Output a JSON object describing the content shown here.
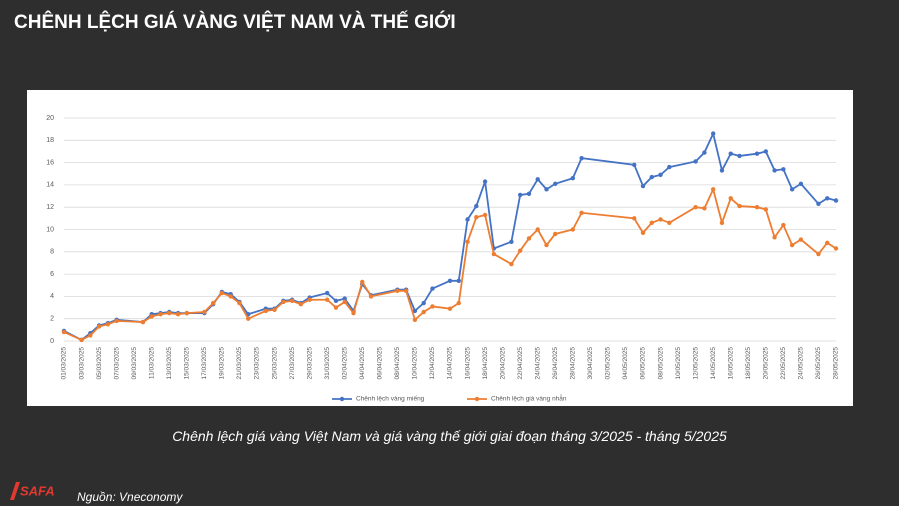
{
  "header": {
    "title": "CHÊNH LỆCH GIÁ VÀNG VIỆT NAM VÀ THẾ GIỚI"
  },
  "caption": "Chênh lệch giá vàng Việt Nam và giá vàng thế giới giai đoạn tháng 3/2025 - tháng 5/2025",
  "source": "Nguồn: Vneconomy",
  "logo": "SAFA",
  "chart_data": {
    "type": "line",
    "x": [
      "01/03/2025",
      "03/03/2025",
      "04/03/2025",
      "05/03/2025",
      "06/03/2025",
      "07/03/2025",
      "10/03/2025",
      "11/03/2025",
      "12/03/2025",
      "13/03/2025",
      "14/03/2025",
      "15/03/2025",
      "17/03/2025",
      "18/03/2025",
      "19/03/2025",
      "20/03/2025",
      "21/03/2025",
      "22/03/2025",
      "24/03/2025",
      "25/03/2025",
      "26/03/2025",
      "27/03/2025",
      "28/03/2025",
      "29/03/2025",
      "31/03/2025",
      "01/04/2025",
      "02/04/2025",
      "03/04/2025",
      "04/04/2025",
      "05/04/2025",
      "08/04/2025",
      "09/04/2025",
      "10/04/2025",
      "11/04/2025",
      "12/04/2025",
      "14/04/2025",
      "15/04/2025",
      "16/04/2025",
      "17/04/2025",
      "18/04/2025",
      "19/04/2025",
      "21/04/2025",
      "22/04/2025",
      "23/04/2025",
      "24/04/2025",
      "25/04/2025",
      "26/04/2025",
      "28/04/2025",
      "29/04/2025",
      "05/05/2025",
      "06/05/2025",
      "07/05/2025",
      "08/05/2025",
      "09/05/2025",
      "12/05/2025",
      "13/05/2025",
      "14/05/2025",
      "15/05/2025",
      "16/05/2025",
      "17/05/2025",
      "19/05/2025",
      "20/05/2025",
      "21/05/2025",
      "22/05/2025",
      "23/05/2025",
      "24/05/2025",
      "26/05/2025",
      "27/05/2025",
      "28/05/2025"
    ],
    "series": [
      {
        "name": "Chênh lệch vàng miếng",
        "color": "#4472c4",
        "values": [
          0.9,
          0.1,
          0.7,
          1.4,
          1.6,
          1.9,
          1.7,
          2.4,
          2.5,
          2.6,
          2.5,
          2.5,
          2.5,
          3.3,
          4.4,
          4.2,
          3.5,
          2.4,
          2.9,
          2.9,
          3.6,
          3.7,
          3.4,
          3.9,
          4.3,
          3.6,
          3.8,
          2.7,
          5.1,
          4.1,
          4.6,
          4.6,
          2.7,
          3.4,
          4.7,
          5.4,
          5.4,
          10.9,
          12.1,
          14.3,
          8.3,
          8.9,
          13.1,
          13.2,
          14.5,
          13.6,
          14.1,
          14.6,
          16.4,
          15.8,
          13.9,
          14.7,
          14.9,
          15.6,
          16.1,
          16.9,
          18.6,
          15.3,
          16.8,
          16.6,
          16.8,
          17.0,
          15.3,
          15.4,
          13.6,
          14.1,
          12.3,
          12.8,
          12.6
        ]
      },
      {
        "name": "Chênh lệch giá vàng nhẫn",
        "color": "#ed7d31",
        "values": [
          0.8,
          0.1,
          0.5,
          1.3,
          1.5,
          1.8,
          1.7,
          2.2,
          2.4,
          2.5,
          2.4,
          2.5,
          2.6,
          3.4,
          4.3,
          4.0,
          3.4,
          2.0,
          2.7,
          2.8,
          3.5,
          3.6,
          3.3,
          3.7,
          3.7,
          3.0,
          3.5,
          2.5,
          5.3,
          4.0,
          4.5,
          4.5,
          1.9,
          2.6,
          3.1,
          2.9,
          3.4,
          8.9,
          11.1,
          11.3,
          7.8,
          6.9,
          8.1,
          9.2,
          10.0,
          8.6,
          9.6,
          10.0,
          11.5,
          11.0,
          9.7,
          10.6,
          10.9,
          10.6,
          12.0,
          11.9,
          13.6,
          10.6,
          12.8,
          12.1,
          12.0,
          11.8,
          9.3,
          10.4,
          8.6,
          9.1,
          7.8,
          8.8,
          8.3
        ]
      }
    ],
    "xlim": [
      "01/03/2025",
      "28/05/2025"
    ],
    "xticks": [
      "01/03/2025",
      "03/03/2025",
      "05/03/2025",
      "07/03/2025",
      "09/03/2025",
      "11/03/2025",
      "13/03/2025",
      "15/03/2025",
      "17/03/2025",
      "19/03/2025",
      "21/03/2025",
      "23/03/2025",
      "25/03/2025",
      "27/03/2025",
      "29/03/2025",
      "31/03/2025",
      "02/04/2025",
      "04/04/2025",
      "06/04/2025",
      "08/04/2025",
      "10/04/2025",
      "12/04/2025",
      "14/04/2025",
      "16/04/2025",
      "18/04/2025",
      "20/04/2025",
      "22/04/2025",
      "24/04/2025",
      "26/04/2025",
      "28/04/2025",
      "30/04/2025",
      "02/05/2025",
      "04/05/2025",
      "06/05/2025",
      "08/05/2025",
      "10/05/2025",
      "12/05/2025",
      "14/05/2025",
      "16/05/2025",
      "18/05/2025",
      "20/05/2025",
      "22/05/2025",
      "24/05/2025",
      "26/05/2025",
      "28/05/2025"
    ],
    "ylim": [
      0,
      20
    ],
    "yticks": [
      0,
      2,
      4,
      6,
      8,
      10,
      12,
      14,
      16,
      18,
      20
    ],
    "grid": true,
    "legend": "bottom"
  }
}
